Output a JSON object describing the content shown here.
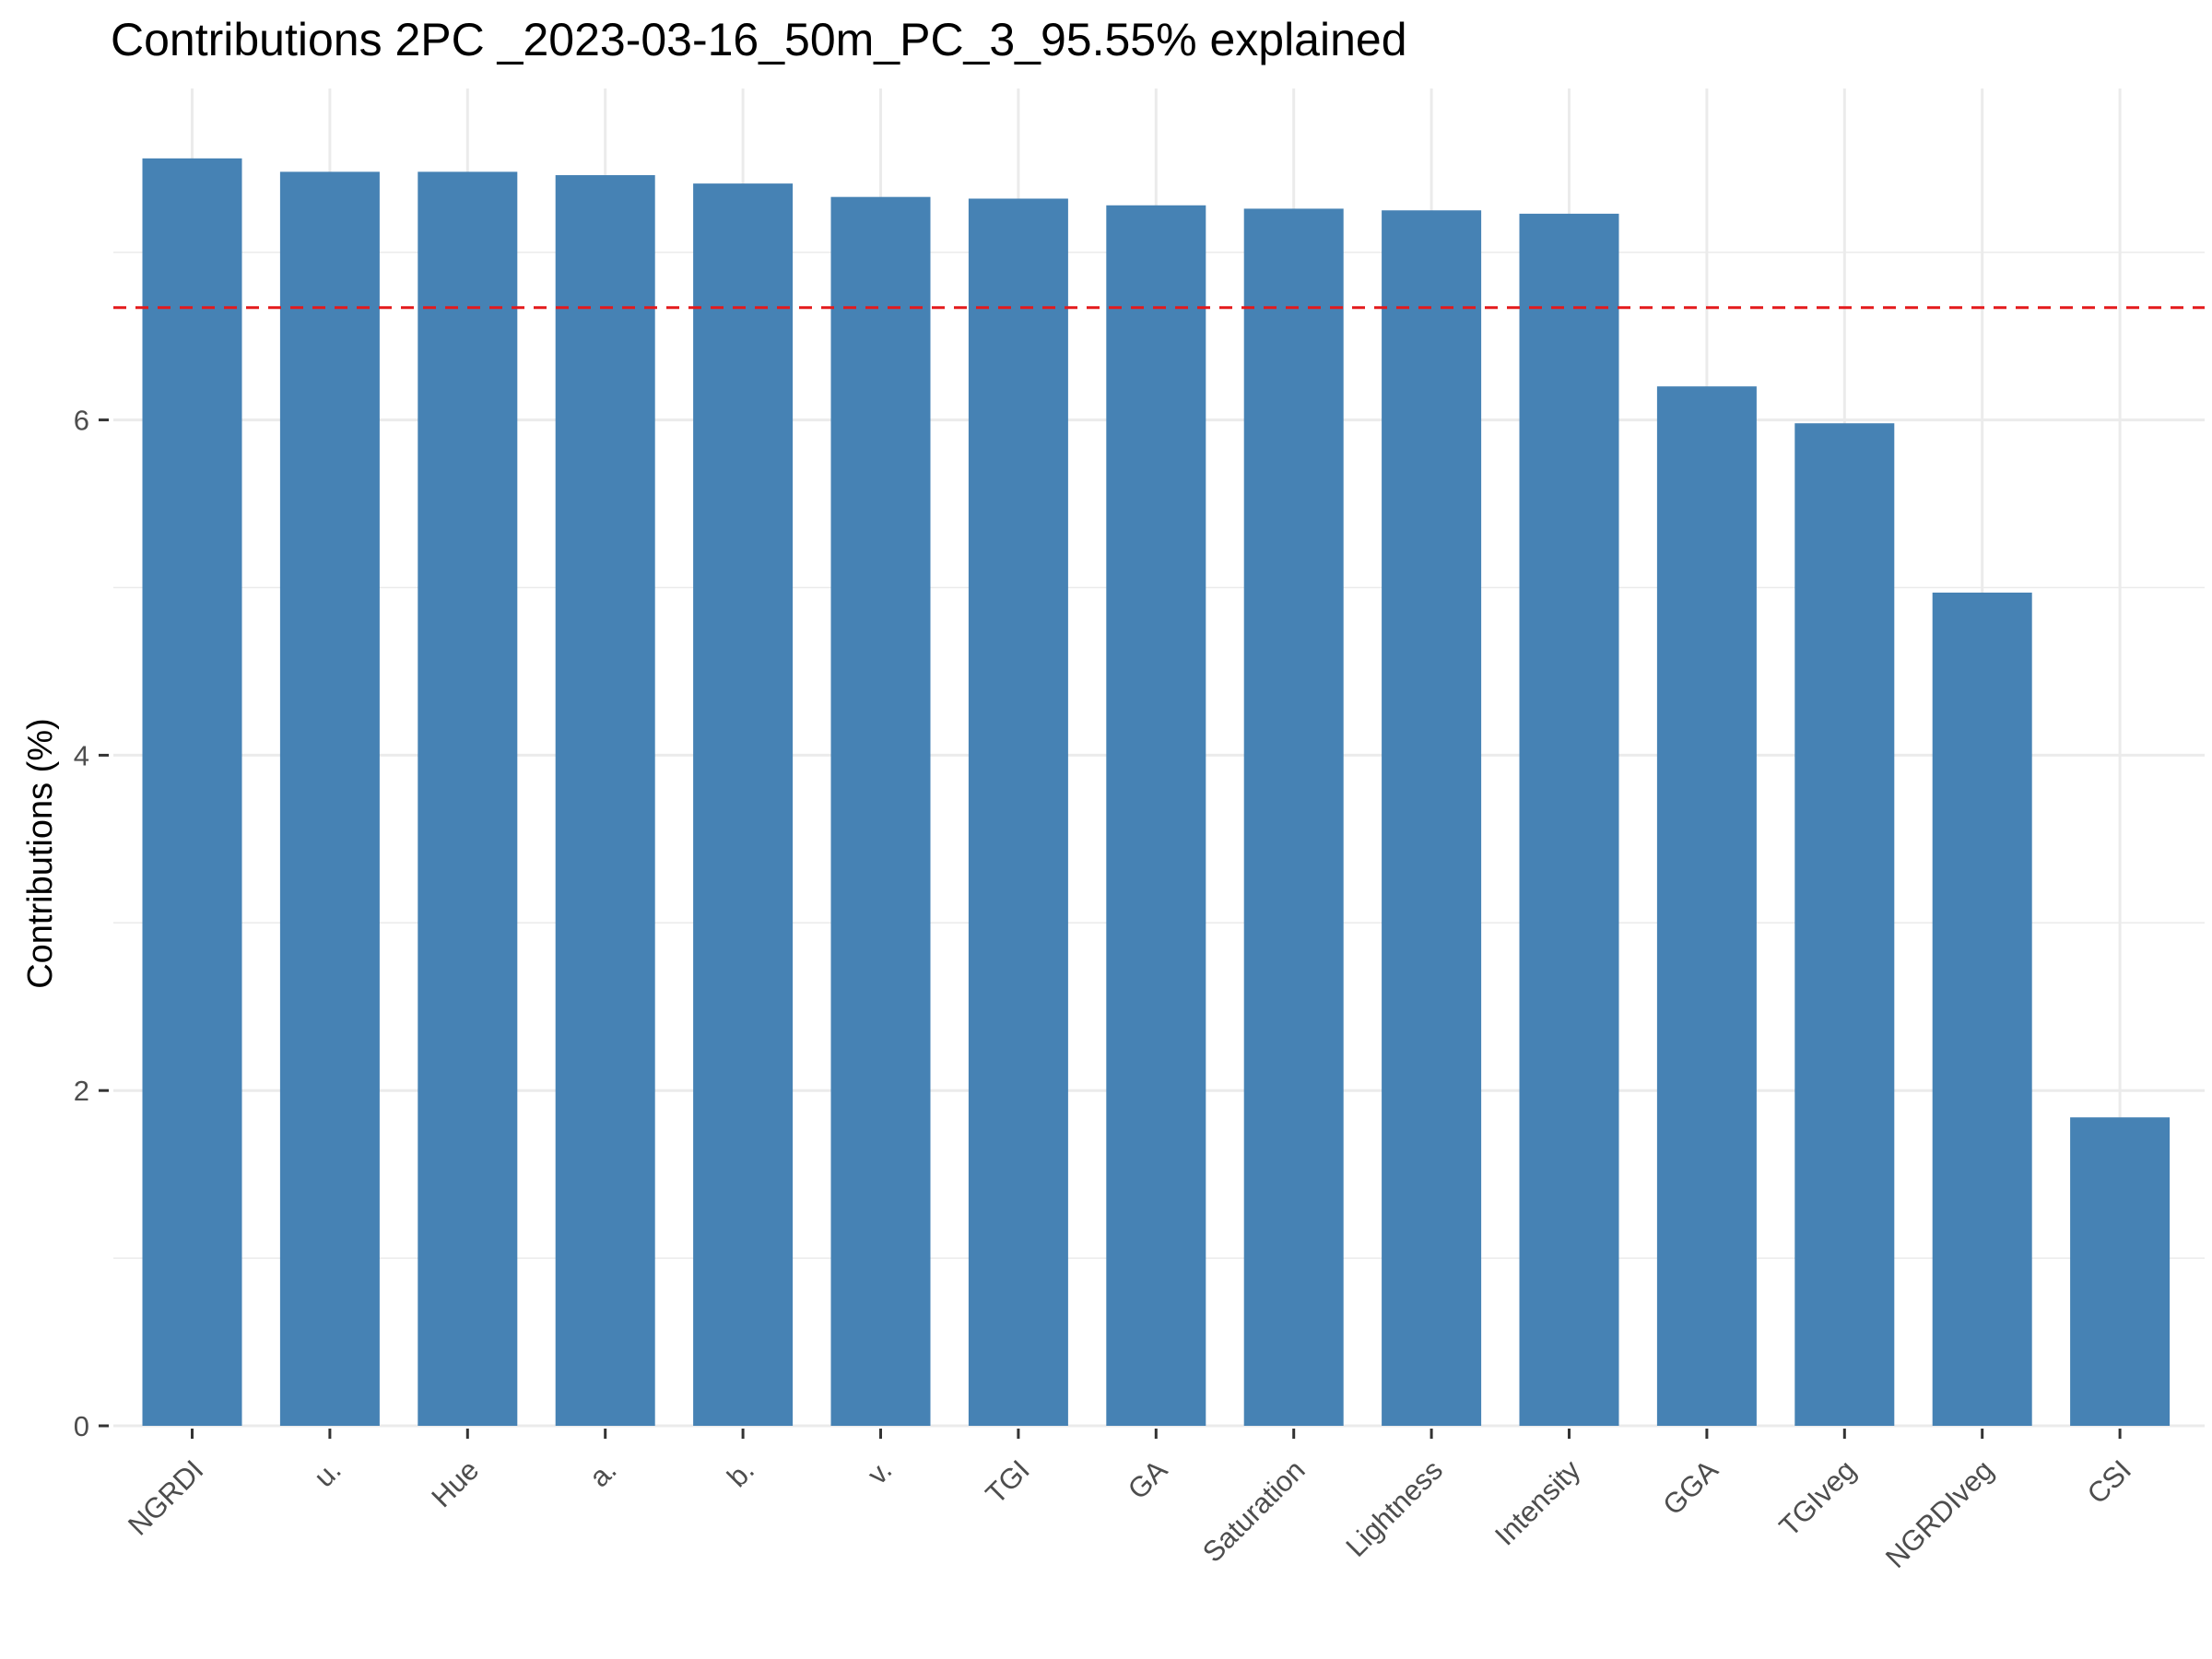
{
  "chart_data": {
    "type": "bar",
    "title": "Contributions 2PC _2023-03-16_50m_PC_3_95.55% explained",
    "xlabel": "",
    "ylabel": "Contributions (%)",
    "categories": [
      "NGRDI",
      "u.",
      "Hue",
      "a.",
      "b.",
      "v.",
      "TGI",
      "GA",
      "Saturation",
      "Lightness",
      "Intensity",
      "GGA",
      "TGIveg",
      "NGRDIveg",
      "CSI"
    ],
    "values": [
      7.56,
      7.48,
      7.48,
      7.46,
      7.41,
      7.33,
      7.32,
      7.28,
      7.26,
      7.25,
      7.23,
      6.2,
      5.98,
      4.97,
      1.84
    ],
    "ylim": [
      0,
      7.9
    ],
    "yticks": [
      0,
      2,
      4,
      6
    ],
    "reference_line": {
      "value": 6.67,
      "style": "dashed",
      "color": "#e41a1c"
    },
    "bar_color": "#4682b4",
    "grid": true,
    "legend": "none"
  }
}
